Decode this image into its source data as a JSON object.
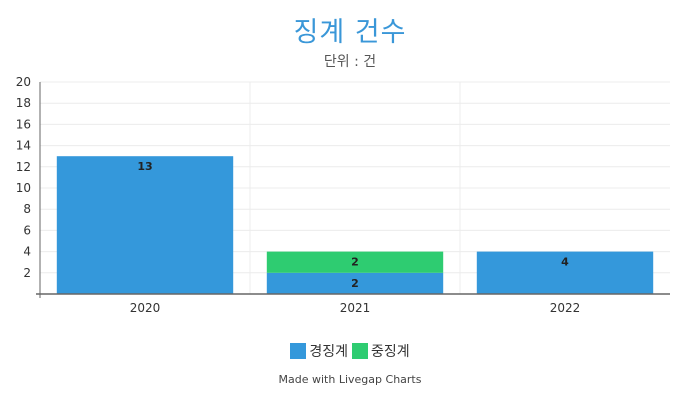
{
  "chart_data": {
    "type": "bar",
    "stacked": true,
    "title": "징계 건수",
    "subtitle": "단위 : 건",
    "categories": [
      "2020",
      "2021",
      "2022"
    ],
    "series": [
      {
        "name": "경징계",
        "color": "#3498db",
        "values": [
          13,
          2,
          4
        ]
      },
      {
        "name": "중징계",
        "color": "#2ecc71",
        "values": [
          0,
          2,
          0
        ]
      }
    ],
    "ylim": [
      0,
      20
    ],
    "yticks": [
      2,
      4,
      6,
      8,
      10,
      12,
      14,
      16,
      18,
      20
    ],
    "grid": true,
    "legend_position": "bottom"
  },
  "credit": "Made with Livegap Charts"
}
